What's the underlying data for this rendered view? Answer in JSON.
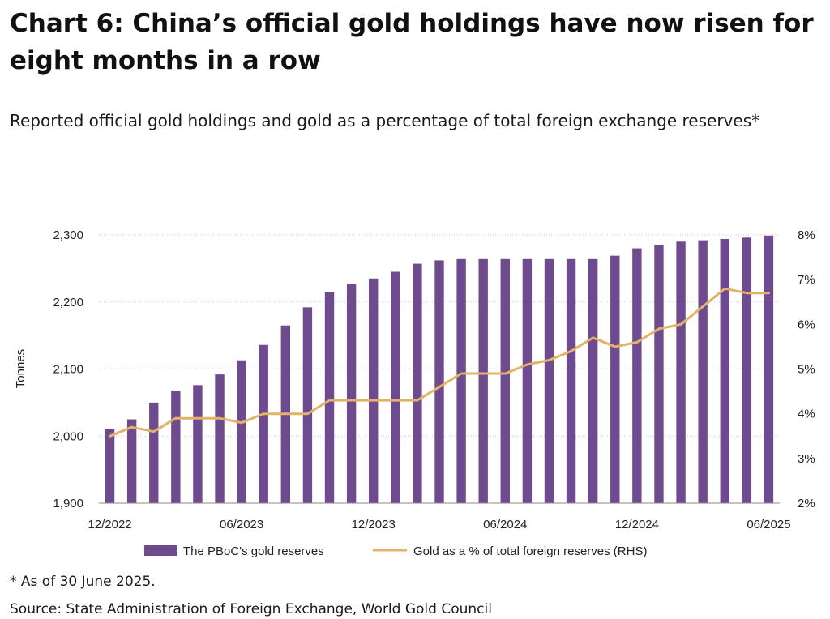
{
  "header": {
    "title": "Chart 6: China’s official gold holdings have now risen for eight months in a row",
    "subtitle": "Reported official gold holdings and gold as a percentage of total foreign exchange reserves*"
  },
  "footer": {
    "note": "* As of 30 June 2025.",
    "source": "Source: State Administration of Foreign Exchange, World Gold Council"
  },
  "chart_data": {
    "type": "bar",
    "colors": {
      "bars": "#6e4a8e",
      "line": "#e2b268",
      "grid": "#c8c8c8",
      "axis": "#8a8a8a"
    },
    "categories": [
      "12/2022",
      "01/2023",
      "02/2023",
      "03/2023",
      "04/2023",
      "05/2023",
      "06/2023",
      "07/2023",
      "08/2023",
      "09/2023",
      "10/2023",
      "11/2023",
      "12/2023",
      "01/2024",
      "02/2024",
      "03/2024",
      "04/2024",
      "05/2024",
      "06/2024",
      "07/2024",
      "08/2024",
      "09/2024",
      "10/2024",
      "11/2024",
      "12/2024",
      "01/2025",
      "02/2025",
      "03/2025",
      "04/2025",
      "05/2025",
      "06/2025"
    ],
    "x_tick_labels": [
      "12/2022",
      "06/2023",
      "12/2023",
      "06/2024",
      "12/2024",
      "06/2025"
    ],
    "series": [
      {
        "name": "The PBoC's gold reserves",
        "type": "bar",
        "axis": "left",
        "values": [
          2010,
          2025,
          2050,
          2068,
          2076,
          2092,
          2113,
          2136,
          2165,
          2192,
          2215,
          2227,
          2235,
          2245,
          2257,
          2262,
          2264,
          2264,
          2264,
          2264,
          2264,
          2264,
          2264,
          2269,
          2280,
          2285,
          2290,
          2292,
          2294,
          2296,
          2299
        ]
      },
      {
        "name": "Gold as a % of total foreign reserves (RHS)",
        "type": "line",
        "axis": "right",
        "values": [
          3.5,
          3.7,
          3.6,
          3.9,
          3.9,
          3.9,
          3.8,
          4.0,
          4.0,
          4.0,
          4.3,
          4.3,
          4.3,
          4.3,
          4.3,
          4.6,
          4.9,
          4.9,
          4.9,
          5.1,
          5.2,
          5.4,
          5.7,
          5.5,
          5.6,
          5.9,
          6.0,
          6.4,
          6.8,
          6.7,
          6.7
        ]
      }
    ],
    "ylabel": "Tonnes",
    "ylim": [
      1900,
      2300
    ],
    "y_ticks": [
      "1,900",
      "2,000",
      "2,100",
      "2,200",
      "2,300"
    ],
    "y2lim": [
      2,
      8
    ],
    "y2_ticks": [
      "2%",
      "3%",
      "4%",
      "5%",
      "6%",
      "7%",
      "8%"
    ],
    "grid": true,
    "legend_position": "bottom"
  }
}
